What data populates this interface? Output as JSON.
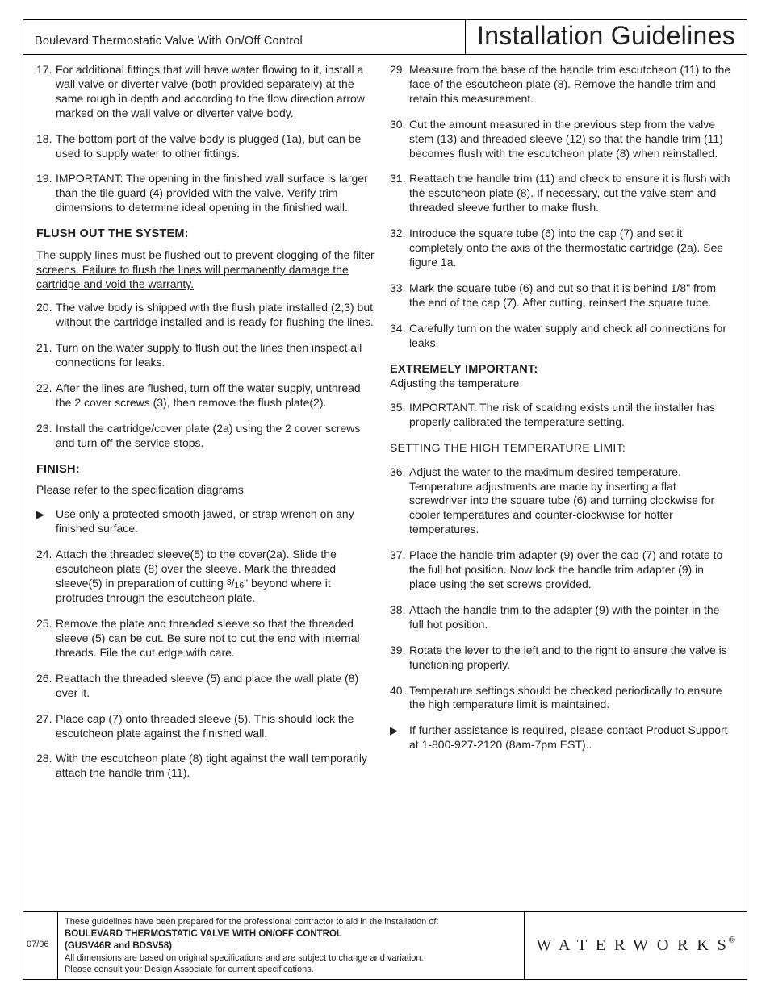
{
  "header": {
    "product": "Boulevard Thermostatic Valve With On/Off Control",
    "title": "Installation Guidelines"
  },
  "left": {
    "s17": "For additional fittings that will have water flowing to it, install a wall valve or diverter valve (both provided separately) at the same rough in depth and according to the flow direction arrow marked on the wall valve or diverter valve body.",
    "s18": "The bottom port of the valve body is plugged (1a), but can be used to supply water to other fittings.",
    "s19": "IMPORTANT:  The opening in the finished wall surface is larger than the tile guard (4) provided with the valve. Verify trim dimensions to determine ideal opening in the finished wall.",
    "flush_title": "FLUSH OUT THE SYSTEM:",
    "flush_warn": "The supply lines must be flushed out to prevent clogging of the filter screens. Failure to flush the lines will permanently damage the cartridge and void the warranty.",
    "s20": "The valve body is shipped with the flush plate installed (2,3) but without the cartridge installed and is ready for flushing the lines.",
    "s21": "Turn on the water supply to flush out the lines then inspect all connections for leaks.",
    "s22": "After the lines are flushed, turn off the water supply, unthread the 2 cover screws (3), then remove the flush plate(2).",
    "s23": "Install the cartridge/cover plate (2a) using the 2 cover screws and turn off the service stops.",
    "finish_title": "FINISH:",
    "finish_note": "Please refer to the specification diagrams",
    "bullet1": "Use only a protected smooth-jawed, or strap wrench on any finished surface.",
    "s24a": "Attach the threaded sleeve(5) to the cover(2a). Slide the escutcheon plate (8) over the sleeve. Mark the threaded sleeve(5) in preparation of cutting ",
    "s24b": "\" beyond where it protrudes through the escutcheon plate.",
    "s25": "Remove the plate and threaded sleeve so that the threaded sleeve (5) can be cut. Be sure not to cut the end with internal threads. File the cut edge with care.",
    "s26": "Reattach the threaded sleeve (5) and place the wall plate (8) over it.",
    "s27": "Place cap (7) onto threaded sleeve (5). This should lock the escutcheon plate against the finished wall.",
    "s28": " With the escutcheon plate (8) tight against the wall temporarily attach the handle trim (11)."
  },
  "right": {
    "s29": "Measure from the base of the handle trim escutcheon (11) to the face of the escutcheon plate (8). Remove the handle trim and retain this measurement.",
    "s30": "Cut the amount measured in the previous step from the valve stem (13) and threaded sleeve (12) so that the handle trim (11) becomes flush with the escutcheon plate (8) when reinstalled.",
    "s31": "Reattach the handle trim (11) and check to ensure it is flush with the escutcheon plate (8). If necessary, cut the valve stem and threaded sleeve further to make flush.",
    "s32": "Introduce the square tube (6) into the cap (7) and set it completely onto the axis of the thermostatic cartridge (2a). See figure 1a.",
    "s33": "Mark the square tube (6) and cut so that it is behind 1/8\" from the end of the cap (7). After cutting, reinsert the square tube.",
    "s34": "Carefully turn on the water supply and check all connections for leaks.",
    "imp_title": "EXTREMELY IMPORTANT:",
    "imp_sub": "Adjusting the temperature",
    "s35": "IMPORTANT: The risk of scalding exists until the installer has properly calibrated the temperature setting.",
    "set_title": "SETTING THE HIGH TEMPERATURE LIMIT:",
    "s36": "Adjust the water to the maximum desired temperature. Temperature adjustments are made by inserting a flat screwdriver into the square tube (6) and turning clockwise for cooler temperatures and counter-clockwise for hotter temperatures.",
    "s37": "Place the handle trim adapter (9) over the cap (7) and rotate to the full hot position. Now lock the handle trim adapter (9) in place using the set screws provided.",
    "s38": "Attach the handle trim to the adapter (9) with the pointer in the full hot position.",
    "s39": "Rotate the lever to the left and to the right to ensure the valve is functioning properly.",
    "s40": "Temperature settings should be checked periodically to ensure the high temperature limit is maintained.",
    "bullet2": "If further assistance is required, please contact Product Support at 1-800-927-2120 (8am-7pm EST).."
  },
  "footer": {
    "date": "07/06",
    "line1": "These guidelines have been prepared for the professional contractor to aid in the installation of:",
    "line2": "BOULEVARD THERMOSTATIC VALVE WITH ON/OFF CONTROL",
    "line3": "(GUSV46R and BDSV58)",
    "line4": "All dimensions are based on original specifications and are subject to change and variation.",
    "line5": "Please consult your Design Associate for current specifications.",
    "logo": "WATERWORKS"
  }
}
